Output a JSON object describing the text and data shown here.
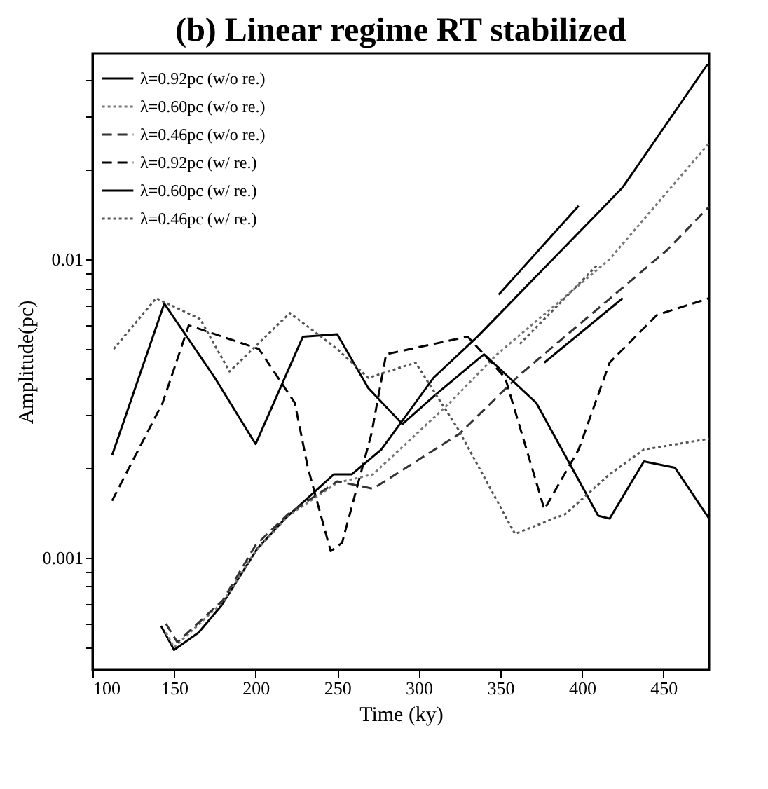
{
  "chart_data": {
    "type": "line",
    "title": "(b)  Linear regime RT stabilized",
    "xlabel": "Time (ky)",
    "ylabel": "Amplitude(pc)",
    "log": "y",
    "xlim": [
      100,
      478
    ],
    "xticks": [
      100,
      150,
      200,
      250,
      300,
      350,
      400,
      450
    ],
    "ylim": [
      0.00042,
      0.049
    ],
    "yticks": [
      {
        "value": 0.0005,
        "label": null
      },
      {
        "value": 0.0006,
        "label": null
      },
      {
        "value": 0.0007,
        "label": null
      },
      {
        "value": 0.0008,
        "label": null
      },
      {
        "value": 0.0009,
        "label": null
      },
      0.001,
      {
        "value": 0.002,
        "label": null
      },
      {
        "value": 0.003,
        "label": null
      },
      {
        "value": 0.004,
        "label": null
      },
      {
        "value": 0.005,
        "label": null
      },
      {
        "value": 0.006,
        "label": null
      },
      {
        "value": 0.007,
        "label": null
      },
      {
        "value": 0.008,
        "label": null
      },
      {
        "value": 0.009,
        "label": null
      },
      0.01,
      {
        "value": 0.02,
        "label": null
      },
      {
        "value": 0.03,
        "label": null
      },
      {
        "value": 0.04,
        "label": null
      }
    ],
    "grid": false,
    "legend": "top left",
    "marker": "none",
    "series": [
      {
        "name": "λ=0.92pc (w/o re.)",
        "color": "#000000",
        "line_style": "solid",
        "x": [
          142,
          150,
          165,
          179,
          201,
          218,
          248,
          259,
          277,
          309,
          336,
          425,
          477
        ],
        "values": [
          0.00059,
          0.00049,
          0.00056,
          0.00069,
          0.00107,
          0.00135,
          0.0019,
          0.0019,
          0.0023,
          0.004,
          0.0055,
          0.0174,
          0.045
        ]
      },
      {
        "name": "λ=0.60pc (w/o re.)",
        "color": "#777777",
        "line_style": "dotted",
        "x": [
          145,
          150,
          180,
          200,
          220,
          250,
          272,
          319,
          348,
          417,
          478
        ],
        "values": [
          0.00056,
          0.0005,
          0.00071,
          0.00105,
          0.00138,
          0.00178,
          0.0019,
          0.0033,
          0.0048,
          0.01,
          0.0245
        ]
      },
      {
        "name": "λ=0.46pc (w/o re.)",
        "color": "#333333",
        "line_style": "dashed",
        "x": [
          145,
          152,
          180,
          200,
          220,
          250,
          272,
          325,
          362,
          452,
          478
        ],
        "values": [
          0.0006,
          0.00052,
          0.00072,
          0.0011,
          0.0014,
          0.0018,
          0.0017,
          0.0026,
          0.0041,
          0.0107,
          0.015
        ]
      },
      {
        "name": "λ=0.92pc (w/ re.)",
        "color": "#000000",
        "line_style": "dashed",
        "x": [
          112,
          143,
          159,
          202,
          224,
          232,
          246,
          253,
          271,
          280,
          330,
          353,
          377,
          398,
          417,
          446,
          478
        ],
        "values": [
          0.00155,
          0.0033,
          0.006,
          0.005,
          0.0033,
          0.002,
          0.00105,
          0.00112,
          0.0026,
          0.0048,
          0.0055,
          0.004,
          0.00145,
          0.0023,
          0.0045,
          0.0065,
          0.0074
        ]
      },
      {
        "name": "λ=0.60pc (w/ re.)",
        "color": "#000000",
        "line_style": "solid",
        "x": [
          112,
          144,
          175,
          200,
          229,
          250,
          269,
          290,
          310,
          340,
          372,
          410,
          417,
          438,
          457,
          478
        ],
        "values": [
          0.0022,
          0.0071,
          0.004,
          0.0024,
          0.0055,
          0.0056,
          0.0037,
          0.0028,
          0.0035,
          0.0048,
          0.0033,
          0.00138,
          0.00135,
          0.0021,
          0.002,
          0.00135
        ]
      },
      {
        "name": "λ=0.46pc (w/ re.)",
        "color": "#555555",
        "line_style": "dotted",
        "x": [
          113,
          139,
          166,
          184,
          221,
          250,
          269,
          298,
          324,
          359,
          390,
          417,
          438,
          478
        ],
        "values": [
          0.005,
          0.0074,
          0.0063,
          0.0042,
          0.0066,
          0.005,
          0.004,
          0.0045,
          0.0027,
          0.0012,
          0.0014,
          0.0019,
          0.0023,
          0.0025
        ]
      },
      {
        "color": "#000000",
        "line_style": "solid",
        "x": [
          349,
          398
        ],
        "values": [
          0.0076,
          0.0151
        ]
      },
      {
        "color": "#555555",
        "line_style": "dotted",
        "x": [
          362,
          409
        ],
        "values": [
          0.0052,
          0.0095
        ]
      },
      {
        "color": "#000000",
        "line_style": "solid",
        "x": [
          377,
          425
        ],
        "values": [
          0.0045,
          0.0074
        ]
      }
    ]
  }
}
